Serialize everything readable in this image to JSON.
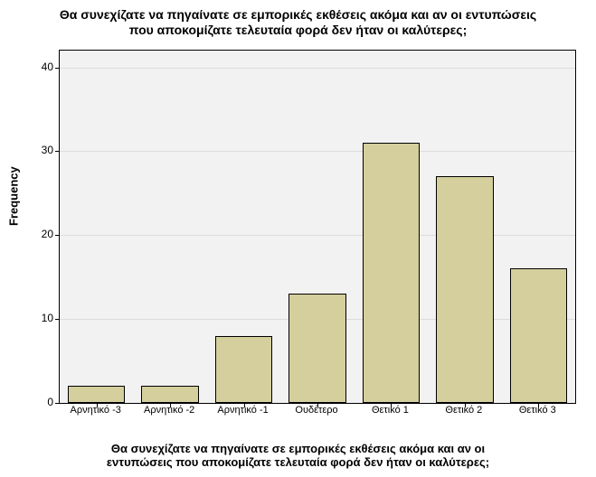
{
  "chart": {
    "type": "bar",
    "title_line1": "Θα συνεχίζατε να πηγαίνατε σε εμπορικές εκθέσεις ακόμα και αν οι εντυπώσεις",
    "title_line2": "που αποκομίζατε τελευταία φορά δεν ήταν οι καλύτερες;",
    "ylabel": "Frequency",
    "xlabel_line1": "Θα συνεχίζατε να πηγαίνατε σε εμπορικές εκθέσεις ακόμα και αν οι",
    "xlabel_line2": "εντυπώσεις που αποκομίζατε τελευταία φορά δεν ήταν οι καλύτερες;",
    "title_fontsize": 14,
    "label_fontsize": 13,
    "tick_fontsize": 12,
    "x_tick_fontsize": 11,
    "ylim": [
      0,
      42
    ],
    "yticks": [
      0,
      10,
      20,
      30,
      40
    ],
    "categories": [
      "Αρνητικό -3",
      "Αρνητικό -2",
      "Αρνητικό -1",
      "Ουδέτερο",
      "Θετικό 1",
      "Θετικό 2",
      "Θετικό 3"
    ],
    "values": [
      2,
      2,
      8,
      13,
      31,
      27,
      16
    ],
    "bar_color": "#d4cf9d",
    "bar_border_color": "#000000",
    "background_color": "#f2f2f2",
    "grid_color": "rgba(0,0,0,0.09)",
    "plot_border_color": "#000000",
    "bar_width_ratio": 0.78
  }
}
